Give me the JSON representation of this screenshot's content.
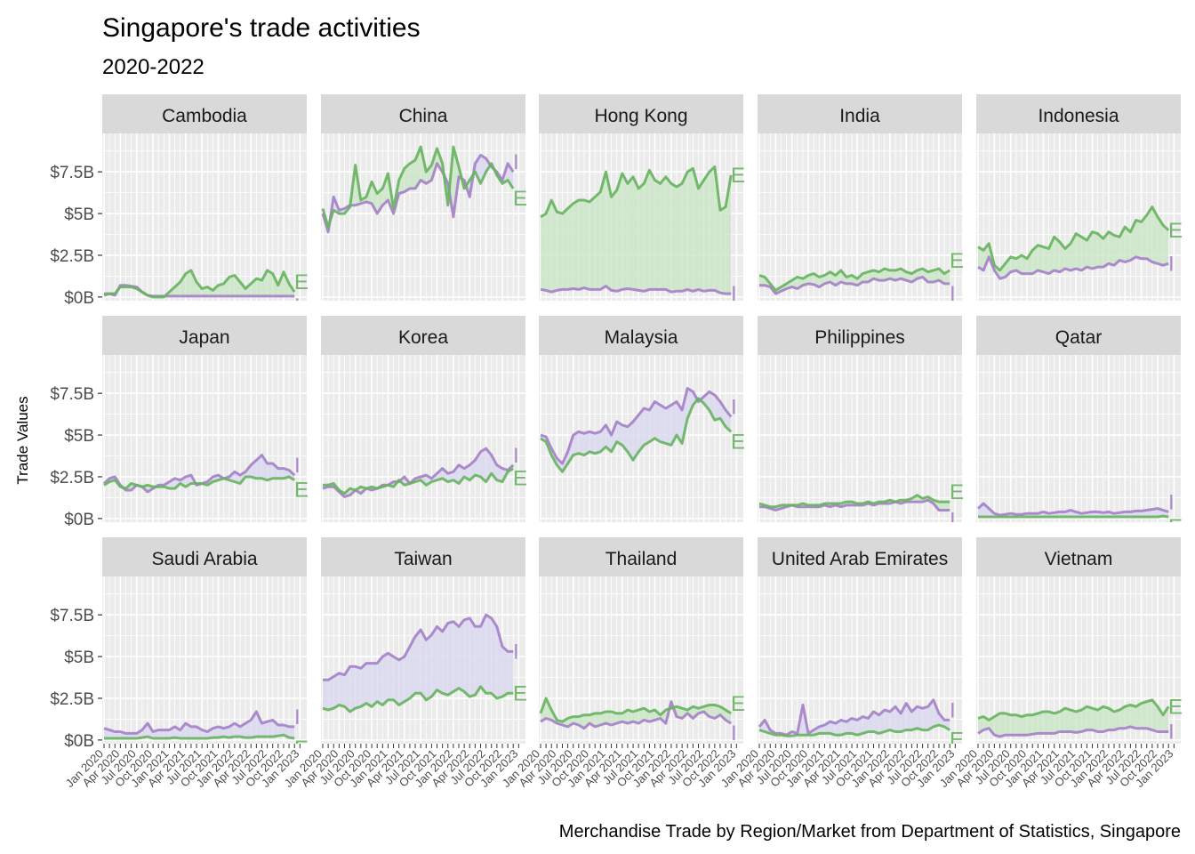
{
  "title": "Singapore's trade activities",
  "subtitle": "2020-2022",
  "caption": "Merchandise Trade by Region/Market from Department of Statistics, Singapore",
  "ylabel": "Trade Values",
  "colors": {
    "exports_line": "#66B35E",
    "imports_line": "#A480C8",
    "exports_fill": "#CDE6C8",
    "imports_fill": "#D9D9EE",
    "panel_bg": "#EBEBEB",
    "strip_bg": "#D9D9D9"
  },
  "chart_data": {
    "type": "area",
    "facet_by": "Region/Market",
    "ylim": [
      0,
      9800000000
    ],
    "y_ticks": [
      0,
      2500000000,
      5000000000,
      7500000000
    ],
    "y_tick_labels": [
      "$0B",
      "$2.5B",
      "$5B",
      "$7.5B"
    ],
    "x_ticks": [
      "2020-01",
      "2020-04",
      "2020-07",
      "2020-10",
      "2021-01",
      "2021-04",
      "2021-07",
      "2021-10",
      "2022-01",
      "2022-04",
      "2022-07",
      "2022-10",
      "2023-01"
    ],
    "x_tick_labels": [
      "Jan 2020",
      "Apr 2020",
      "Jul 2020",
      "Oct 2020",
      "Jan 2021",
      "Apr 2021",
      "Jul 2021",
      "Oct 2021",
      "Jan 2022",
      "Apr 2022",
      "Jul 2022",
      "Oct 2022",
      "Jan 2023"
    ],
    "months": [
      "2020-01",
      "2020-02",
      "2020-03",
      "2020-04",
      "2020-05",
      "2020-06",
      "2020-07",
      "2020-08",
      "2020-09",
      "2020-10",
      "2020-11",
      "2020-12",
      "2021-01",
      "2021-02",
      "2021-03",
      "2021-04",
      "2021-05",
      "2021-06",
      "2021-07",
      "2021-08",
      "2021-09",
      "2021-10",
      "2021-11",
      "2021-12",
      "2022-01",
      "2022-02",
      "2022-03",
      "2022-04",
      "2022-05",
      "2022-06",
      "2022-07",
      "2022-08",
      "2022-09",
      "2022-10",
      "2022-11",
      "2022-12"
    ],
    "series_end_labels": {
      "exports": "E",
      "imports": "I"
    },
    "unit": "$B",
    "facets": [
      {
        "name": "Cambodia",
        "exports": [
          0.1,
          0.2,
          0.2,
          0.6,
          0.6,
          0.6,
          0.5,
          0.3,
          0.1,
          0.0,
          0.0,
          0.0,
          0.3,
          0.6,
          0.9,
          1.4,
          1.6,
          0.9,
          0.5,
          0.6,
          0.4,
          0.7,
          0.8,
          1.2,
          1.3,
          0.9,
          0.5,
          0.8,
          1.1,
          1.0,
          1.6,
          1.4,
          0.7,
          1.5,
          0.8,
          0.3
        ],
        "imports": [
          0.2,
          0.2,
          0.1,
          0.7,
          0.7,
          0.65,
          0.6,
          0.3,
          0.1,
          0.05,
          0.05,
          0.05,
          0.05,
          0.05,
          0.05,
          0.05,
          0.05,
          0.05,
          0.05,
          0.05,
          0.05,
          0.05,
          0.05,
          0.05,
          0.05,
          0.05,
          0.05,
          0.05,
          0.05,
          0.05,
          0.05,
          0.05,
          0.05,
          0.05,
          0.05,
          0.05
        ]
      },
      {
        "name": "China",
        "exports": [
          5.3,
          4.2,
          5.2,
          5.0,
          5.0,
          5.4,
          7.9,
          5.8,
          6.0,
          6.9,
          6.2,
          6.5,
          7.4,
          5.3,
          7.0,
          7.7,
          8.0,
          8.2,
          9.0,
          7.5,
          7.9,
          8.9,
          8.0,
          5.5,
          9.0,
          7.8,
          6.5,
          7.0,
          7.5,
          6.8,
          7.5,
          8.0,
          7.3,
          6.8,
          7.0,
          6.5
        ],
        "imports": [
          5.0,
          3.9,
          6.0,
          5.2,
          5.3,
          5.5,
          5.5,
          5.6,
          5.7,
          5.6,
          5.0,
          5.5,
          5.8,
          5.0,
          6.2,
          6.3,
          6.5,
          6.5,
          7.0,
          6.8,
          7.0,
          8.0,
          7.5,
          6.8,
          4.8,
          7.2,
          7.0,
          6.0,
          8.0,
          8.5,
          8.3,
          7.8,
          7.5,
          7.0,
          8.0,
          7.5
        ]
      },
      {
        "name": "Hong Kong",
        "exports": [
          4.8,
          5.0,
          5.8,
          5.1,
          5.0,
          5.3,
          5.6,
          5.8,
          5.8,
          5.7,
          6.0,
          6.3,
          7.5,
          6.0,
          6.4,
          7.4,
          6.8,
          7.2,
          6.5,
          6.8,
          7.6,
          7.0,
          6.8,
          7.2,
          6.8,
          6.6,
          6.8,
          7.5,
          7.7,
          6.5,
          7.0,
          7.5,
          7.8,
          5.2,
          5.4,
          7.3
        ],
        "imports": [
          0.45,
          0.4,
          0.3,
          0.4,
          0.45,
          0.45,
          0.5,
          0.45,
          0.55,
          0.45,
          0.45,
          0.45,
          0.65,
          0.4,
          0.35,
          0.45,
          0.5,
          0.45,
          0.4,
          0.35,
          0.45,
          0.45,
          0.45,
          0.45,
          0.3,
          0.35,
          0.35,
          0.45,
          0.35,
          0.45,
          0.35,
          0.4,
          0.4,
          0.25,
          0.2,
          0.2
        ]
      },
      {
        "name": "India",
        "exports": [
          1.3,
          1.2,
          0.8,
          0.4,
          0.6,
          0.8,
          1.0,
          1.2,
          1.1,
          1.3,
          1.4,
          1.2,
          1.3,
          1.5,
          1.3,
          1.6,
          1.2,
          1.3,
          1.1,
          1.4,
          1.5,
          1.6,
          1.5,
          1.7,
          1.6,
          1.6,
          1.7,
          1.5,
          1.4,
          1.6,
          1.7,
          1.5,
          1.6,
          1.7,
          1.4,
          1.6
        ],
        "imports": [
          0.7,
          0.7,
          0.6,
          0.2,
          0.35,
          0.5,
          0.6,
          0.5,
          0.7,
          0.8,
          0.75,
          0.6,
          0.8,
          0.9,
          0.7,
          0.9,
          0.8,
          0.8,
          0.7,
          0.9,
          0.9,
          1.1,
          1.0,
          1.0,
          1.1,
          1.0,
          1.1,
          1.0,
          0.9,
          1.1,
          1.2,
          0.9,
          0.9,
          1.0,
          0.8,
          0.8
        ]
      },
      {
        "name": "Indonesia",
        "exports": [
          3.0,
          2.8,
          3.2,
          1.9,
          1.6,
          2.0,
          2.4,
          2.3,
          2.5,
          2.3,
          2.8,
          3.1,
          3.0,
          2.9,
          3.6,
          3.3,
          2.9,
          3.2,
          3.8,
          3.6,
          3.4,
          3.9,
          3.8,
          3.5,
          3.9,
          3.7,
          3.6,
          4.2,
          3.9,
          4.6,
          4.5,
          4.9,
          5.4,
          4.8,
          4.3,
          4.0
        ],
        "imports": [
          1.8,
          1.6,
          2.4,
          1.6,
          1.1,
          1.2,
          1.5,
          1.6,
          1.4,
          1.4,
          1.4,
          1.6,
          1.5,
          1.4,
          1.6,
          1.5,
          1.7,
          1.6,
          1.7,
          1.6,
          1.8,
          1.7,
          1.8,
          1.8,
          2.0,
          1.9,
          2.2,
          2.1,
          2.2,
          2.4,
          2.3,
          2.3,
          2.1,
          2.0,
          1.9,
          2.0
        ]
      },
      {
        "name": "Japan",
        "exports": [
          2.0,
          2.2,
          2.3,
          1.9,
          1.8,
          2.1,
          2.0,
          1.9,
          2.0,
          1.9,
          1.9,
          1.9,
          1.8,
          1.8,
          2.1,
          1.9,
          2.1,
          2.1,
          2.1,
          2.0,
          2.2,
          2.3,
          2.4,
          2.3,
          2.2,
          2.1,
          2.5,
          2.5,
          2.4,
          2.4,
          2.3,
          2.4,
          2.4,
          2.4,
          2.5,
          2.3
        ],
        "imports": [
          2.1,
          2.4,
          2.5,
          2.0,
          1.7,
          1.7,
          2.0,
          1.9,
          1.6,
          1.8,
          2.0,
          2.0,
          2.2,
          2.4,
          2.3,
          2.5,
          2.6,
          2.0,
          2.1,
          2.2,
          2.5,
          2.6,
          2.4,
          2.5,
          2.8,
          2.6,
          2.8,
          3.2,
          3.5,
          3.8,
          3.3,
          3.3,
          3.0,
          3.0,
          2.9,
          2.6
        ]
      },
      {
        "name": "Korea",
        "exports": [
          2.0,
          2.0,
          2.1,
          1.7,
          1.5,
          1.8,
          1.7,
          1.9,
          1.8,
          1.9,
          1.8,
          1.9,
          2.0,
          1.9,
          2.3,
          2.0,
          2.1,
          2.2,
          2.3,
          2.0,
          2.2,
          2.3,
          2.4,
          2.2,
          2.3,
          2.1,
          2.5,
          2.3,
          2.6,
          2.5,
          2.2,
          2.7,
          2.3,
          2.2,
          2.8,
          3.0
        ],
        "imports": [
          1.8,
          1.9,
          1.9,
          1.6,
          1.3,
          1.4,
          1.7,
          1.5,
          1.8,
          1.7,
          1.8,
          2.0,
          2.0,
          2.2,
          2.2,
          2.5,
          2.1,
          2.4,
          2.5,
          2.6,
          2.4,
          2.7,
          3.0,
          2.7,
          2.8,
          3.2,
          3.0,
          3.2,
          3.5,
          4.0,
          4.2,
          3.8,
          3.2,
          3.0,
          2.9,
          3.2
        ]
      },
      {
        "name": "Malaysia",
        "exports": [
          4.8,
          4.6,
          3.8,
          3.2,
          2.8,
          3.3,
          3.8,
          3.9,
          3.8,
          4.0,
          3.9,
          4.0,
          4.3,
          4.0,
          4.6,
          4.4,
          4.0,
          3.5,
          4.0,
          4.4,
          4.6,
          4.8,
          4.6,
          4.5,
          4.4,
          5.0,
          4.5,
          6.0,
          6.8,
          7.2,
          6.9,
          6.5,
          5.9,
          6.0,
          5.5,
          5.2
        ],
        "imports": [
          5.0,
          4.9,
          4.2,
          3.6,
          3.3,
          4.0,
          5.0,
          5.2,
          5.1,
          5.2,
          5.1,
          5.2,
          5.6,
          5.0,
          5.8,
          5.6,
          5.5,
          5.8,
          6.2,
          6.6,
          6.5,
          7.0,
          6.8,
          6.6,
          6.8,
          7.0,
          6.5,
          7.8,
          7.6,
          7.0,
          7.3,
          7.6,
          7.4,
          7.0,
          6.5,
          6.1
        ]
      },
      {
        "name": "Philippines",
        "exports": [
          0.9,
          0.8,
          0.7,
          0.7,
          0.8,
          0.8,
          0.8,
          0.8,
          0.9,
          0.8,
          0.8,
          0.8,
          0.9,
          0.9,
          0.9,
          0.9,
          1.0,
          1.0,
          0.9,
          0.9,
          1.0,
          0.9,
          1.0,
          1.0,
          1.1,
          1.0,
          1.1,
          1.1,
          1.2,
          1.4,
          1.2,
          1.3,
          1.1,
          1.0,
          1.0,
          1.0
        ],
        "imports": [
          0.7,
          0.7,
          0.6,
          0.5,
          0.6,
          0.7,
          0.8,
          0.7,
          0.7,
          0.7,
          0.7,
          0.7,
          0.8,
          0.7,
          0.8,
          0.7,
          0.8,
          0.8,
          0.8,
          0.8,
          0.9,
          0.8,
          0.9,
          0.9,
          0.9,
          1.0,
          0.9,
          1.0,
          1.0,
          1.0,
          1.0,
          1.1,
          0.9,
          0.5,
          0.5,
          0.5
        ]
      },
      {
        "name": "Qatar",
        "exports": [
          0.1,
          0.1,
          0.1,
          0.1,
          0.1,
          0.1,
          0.1,
          0.1,
          0.1,
          0.1,
          0.1,
          0.1,
          0.1,
          0.1,
          0.1,
          0.1,
          0.1,
          0.1,
          0.1,
          0.1,
          0.1,
          0.1,
          0.1,
          0.1,
          0.1,
          0.1,
          0.1,
          0.1,
          0.1,
          0.1,
          0.1,
          0.1,
          0.1,
          0.1,
          0.15,
          0.1
        ],
        "imports": [
          0.6,
          0.9,
          0.6,
          0.3,
          0.2,
          0.25,
          0.3,
          0.25,
          0.25,
          0.3,
          0.3,
          0.3,
          0.4,
          0.3,
          0.35,
          0.4,
          0.4,
          0.5,
          0.4,
          0.3,
          0.35,
          0.4,
          0.4,
          0.35,
          0.4,
          0.3,
          0.35,
          0.4,
          0.4,
          0.45,
          0.45,
          0.5,
          0.55,
          0.6,
          0.5,
          0.4
        ]
      },
      {
        "name": "Saudi Arabia",
        "exports": [
          0.1,
          0.1,
          0.1,
          0.1,
          0.1,
          0.1,
          0.1,
          0.15,
          0.2,
          0.1,
          0.1,
          0.1,
          0.1,
          0.15,
          0.1,
          0.1,
          0.1,
          0.1,
          0.1,
          0.1,
          0.15,
          0.15,
          0.2,
          0.15,
          0.2,
          0.2,
          0.15,
          0.15,
          0.2,
          0.2,
          0.2,
          0.2,
          0.25,
          0.3,
          0.15,
          0.1
        ],
        "imports": [
          0.7,
          0.6,
          0.5,
          0.5,
          0.4,
          0.4,
          0.4,
          0.6,
          1.0,
          0.5,
          0.6,
          0.6,
          0.6,
          0.8,
          0.6,
          1.0,
          0.8,
          0.8,
          0.6,
          0.5,
          0.7,
          0.8,
          0.7,
          0.8,
          1.0,
          0.8,
          1.0,
          1.2,
          1.7,
          1.0,
          1.1,
          1.2,
          0.9,
          0.9,
          0.8,
          0.8
        ]
      },
      {
        "name": "Taiwan",
        "exports": [
          1.9,
          1.8,
          1.9,
          2.1,
          2.0,
          1.7,
          1.9,
          2.0,
          2.2,
          2.0,
          2.3,
          2.1,
          2.4,
          2.4,
          2.1,
          2.3,
          2.5,
          2.8,
          2.8,
          2.4,
          2.6,
          3.0,
          2.8,
          2.7,
          2.9,
          3.1,
          2.9,
          2.6,
          2.7,
          3.2,
          2.8,
          2.8,
          2.5,
          2.6,
          2.8,
          2.8
        ],
        "imports": [
          3.6,
          3.6,
          3.8,
          4.0,
          3.9,
          4.4,
          4.4,
          4.3,
          4.6,
          4.6,
          4.6,
          5.0,
          5.2,
          5.0,
          4.8,
          5.0,
          5.6,
          6.2,
          6.6,
          6.0,
          6.3,
          6.8,
          6.5,
          7.0,
          7.1,
          6.8,
          7.2,
          7.3,
          6.8,
          6.8,
          7.5,
          7.3,
          6.8,
          5.6,
          5.3,
          5.3
        ]
      },
      {
        "name": "Thailand",
        "exports": [
          1.6,
          2.5,
          1.8,
          1.2,
          1.1,
          1.3,
          1.4,
          1.4,
          1.5,
          1.5,
          1.6,
          1.6,
          1.7,
          1.7,
          1.6,
          1.6,
          1.8,
          1.7,
          1.8,
          1.9,
          1.7,
          1.8,
          1.5,
          1.8,
          1.9,
          2.0,
          1.9,
          1.8,
          2.0,
          1.9,
          2.0,
          2.1,
          2.1,
          2.0,
          1.8,
          1.6
        ],
        "imports": [
          1.1,
          1.3,
          1.2,
          1.0,
          0.9,
          0.8,
          1.0,
          0.9,
          0.7,
          1.0,
          0.8,
          0.9,
          1.0,
          0.9,
          1.0,
          1.1,
          1.0,
          1.1,
          1.0,
          1.2,
          1.1,
          1.2,
          1.3,
          1.0,
          2.3,
          1.4,
          1.3,
          1.6,
          1.3,
          1.6,
          1.7,
          1.4,
          1.3,
          1.5,
          1.2,
          1.0
        ]
      },
      {
        "name": "United Arab Emirates",
        "exports": [
          0.6,
          0.5,
          0.4,
          0.3,
          0.3,
          0.25,
          0.25,
          0.3,
          0.3,
          0.3,
          0.3,
          0.4,
          0.4,
          0.4,
          0.3,
          0.3,
          0.4,
          0.4,
          0.3,
          0.4,
          0.5,
          0.5,
          0.4,
          0.5,
          0.6,
          0.5,
          0.5,
          0.6,
          0.6,
          0.7,
          0.6,
          0.6,
          0.8,
          0.9,
          0.8,
          0.6
        ],
        "imports": [
          0.8,
          1.2,
          0.6,
          0.4,
          0.4,
          0.3,
          0.5,
          0.4,
          2.1,
          0.4,
          0.6,
          0.8,
          0.9,
          1.1,
          1.0,
          1.2,
          1.1,
          1.3,
          1.2,
          1.4,
          1.3,
          1.7,
          1.5,
          1.8,
          1.7,
          2.0,
          1.6,
          2.2,
          1.7,
          2.0,
          1.9,
          2.0,
          2.4,
          1.6,
          1.2,
          1.2
        ]
      },
      {
        "name": "Vietnam",
        "exports": [
          1.3,
          1.4,
          1.2,
          1.4,
          1.6,
          1.6,
          1.5,
          1.5,
          1.4,
          1.5,
          1.5,
          1.6,
          1.7,
          1.7,
          1.6,
          1.7,
          1.9,
          1.8,
          1.7,
          1.8,
          2.0,
          1.9,
          1.8,
          2.0,
          1.9,
          1.7,
          1.8,
          2.0,
          2.1,
          2.0,
          2.2,
          2.3,
          2.4,
          2.0,
          1.5,
          2.0
        ],
        "imports": [
          0.4,
          0.6,
          0.7,
          0.3,
          0.2,
          0.3,
          0.3,
          0.3,
          0.3,
          0.3,
          0.35,
          0.4,
          0.4,
          0.4,
          0.4,
          0.5,
          0.5,
          0.5,
          0.45,
          0.5,
          0.6,
          0.6,
          0.5,
          0.5,
          0.6,
          0.6,
          0.7,
          0.7,
          0.8,
          0.7,
          0.7,
          0.7,
          0.6,
          0.5,
          0.5,
          0.5
        ]
      }
    ]
  }
}
